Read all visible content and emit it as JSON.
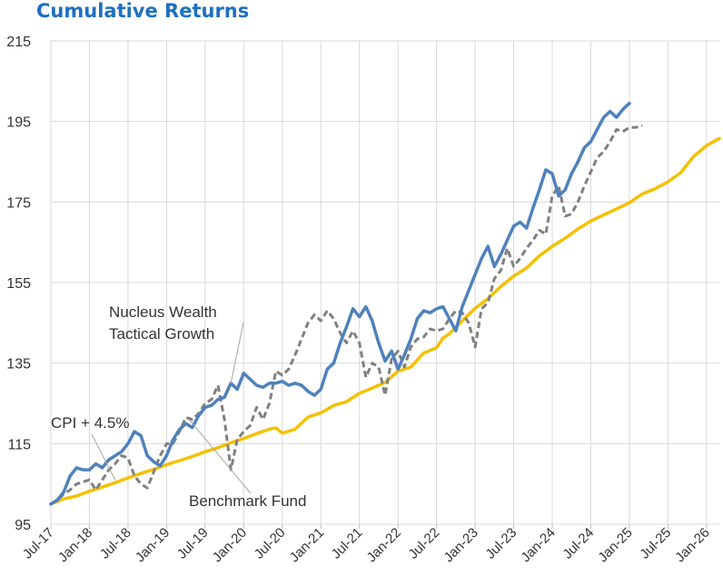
{
  "chart_data": {
    "type": "line",
    "title": "Cumulative Returns",
    "xlabel": "",
    "ylabel": "",
    "ylim": [
      95,
      215
    ],
    "yticks": [
      95,
      115,
      135,
      155,
      175,
      195,
      215
    ],
    "grid": true,
    "legend": "none",
    "colors": {
      "Nucleus Wealth Tactical Growth": "#4f81bd",
      "Benchmark Fund": "#808080",
      "CPI + 4.5%": "#f5c000",
      "grid": "#d9d9d9",
      "title": "#1f6fbf"
    },
    "x_range_months": [
      0,
      104
    ],
    "x_tick_labels": [
      {
        "label": "Jul-17",
        "m": 0
      },
      {
        "label": "Jan-18",
        "m": 6
      },
      {
        "label": "Jul-18",
        "m": 12
      },
      {
        "label": "Jan-19",
        "m": 18
      },
      {
        "label": "Jul-19",
        "m": 24
      },
      {
        "label": "Jan-20",
        "m": 30
      },
      {
        "label": "Jul-20",
        "m": 36
      },
      {
        "label": "Jan-21",
        "m": 42
      },
      {
        "label": "Jul-21",
        "m": 48
      },
      {
        "label": "Jan-22",
        "m": 54
      },
      {
        "label": "Jul-22",
        "m": 60
      },
      {
        "label": "Jan-23",
        "m": 66
      },
      {
        "label": "Jul-23",
        "m": 72
      },
      {
        "label": "Jan-24",
        "m": 78
      },
      {
        "label": "Jul-24",
        "m": 84
      },
      {
        "label": "Jan-25",
        "m": 90
      },
      {
        "label": "Jul-25",
        "m": 96
      },
      {
        "label": "Jan-26",
        "m": 102
      }
    ],
    "series": [
      {
        "name": "CPI + 4.5%",
        "style": "solid",
        "points": [
          [
            0,
            100
          ],
          [
            2,
            101.3
          ],
          [
            4,
            102
          ],
          [
            6,
            103.2
          ],
          [
            8,
            104.2
          ],
          [
            10,
            105.3
          ],
          [
            12,
            106.5
          ],
          [
            14,
            107.6
          ],
          [
            16,
            108.6
          ],
          [
            18,
            109.8
          ],
          [
            20,
            110.8
          ],
          [
            22,
            111.8
          ],
          [
            24,
            113
          ],
          [
            26,
            114
          ],
          [
            28,
            115.2
          ],
          [
            30,
            116.3
          ],
          [
            32,
            117.5
          ],
          [
            34,
            118.6
          ],
          [
            35,
            118.9
          ],
          [
            36,
            117.6
          ],
          [
            38,
            118.6
          ],
          [
            40,
            121.6
          ],
          [
            42,
            122.6
          ],
          [
            44,
            124.5
          ],
          [
            46,
            125.4
          ],
          [
            48,
            127.5
          ],
          [
            50,
            128.8
          ],
          [
            52,
            130.2
          ],
          [
            54,
            133
          ],
          [
            56,
            134
          ],
          [
            58,
            137.5
          ],
          [
            60,
            138.8
          ],
          [
            61,
            141.2
          ],
          [
            62,
            142.3
          ],
          [
            64,
            145.5
          ],
          [
            66,
            148.6
          ],
          [
            68,
            151
          ],
          [
            70,
            154
          ],
          [
            72,
            156.6
          ],
          [
            74,
            158.6
          ],
          [
            76,
            161.6
          ],
          [
            78,
            164
          ],
          [
            80,
            166
          ],
          [
            82,
            168.3
          ],
          [
            84,
            170.3
          ],
          [
            86,
            171.8
          ],
          [
            88,
            173.3
          ],
          [
            90,
            174.8
          ],
          [
            92,
            177
          ],
          [
            94,
            178.3
          ],
          [
            96,
            180
          ],
          [
            98,
            182.3
          ],
          [
            100,
            186.3
          ],
          [
            102,
            189
          ],
          [
            104,
            190.8
          ]
        ]
      },
      {
        "name": "Benchmark Fund",
        "style": "dashed",
        "points": [
          [
            0,
            100
          ],
          [
            1,
            101
          ],
          [
            2,
            102.5
          ],
          [
            3,
            103.5
          ],
          [
            4,
            105
          ],
          [
            5,
            105.5
          ],
          [
            6,
            106
          ],
          [
            7,
            103.5
          ],
          [
            8,
            106
          ],
          [
            9,
            108.5
          ],
          [
            10,
            110
          ],
          [
            11,
            112
          ],
          [
            12,
            111.5
          ],
          [
            13,
            107
          ],
          [
            14,
            105
          ],
          [
            15,
            104
          ],
          [
            16,
            108
          ],
          [
            17,
            112
          ],
          [
            18,
            115
          ],
          [
            19,
            115
          ],
          [
            20,
            118
          ],
          [
            21,
            121.5
          ],
          [
            22,
            121
          ],
          [
            23,
            122.5
          ],
          [
            24,
            125
          ],
          [
            25,
            126
          ],
          [
            26,
            129.5
          ],
          [
            27,
            121
          ],
          [
            28,
            108.5
          ],
          [
            29,
            116
          ],
          [
            30,
            118
          ],
          [
            31,
            119.5
          ],
          [
            32,
            124
          ],
          [
            33,
            121
          ],
          [
            34,
            125
          ],
          [
            35,
            133
          ],
          [
            36,
            132
          ],
          [
            37,
            133.5
          ],
          [
            38,
            137
          ],
          [
            39,
            141
          ],
          [
            40,
            145
          ],
          [
            41,
            147
          ],
          [
            42,
            145.5
          ],
          [
            43,
            148
          ],
          [
            44,
            146
          ],
          [
            45,
            142.5
          ],
          [
            46,
            140
          ],
          [
            47,
            143
          ],
          [
            48,
            140
          ],
          [
            49,
            131.5
          ],
          [
            50,
            135
          ],
          [
            51,
            134
          ],
          [
            52,
            127
          ],
          [
            53,
            136
          ],
          [
            54,
            138
          ],
          [
            55,
            134
          ],
          [
            56,
            139
          ],
          [
            57,
            141
          ],
          [
            58,
            141.5
          ],
          [
            59,
            143.5
          ],
          [
            60,
            143
          ],
          [
            61,
            143.5
          ],
          [
            62,
            146
          ],
          [
            63,
            148
          ],
          [
            64,
            147.5
          ],
          [
            65,
            145
          ],
          [
            66,
            139
          ],
          [
            67,
            148.5
          ],
          [
            68,
            150
          ],
          [
            69,
            156
          ],
          [
            70,
            158
          ],
          [
            71,
            163.5
          ],
          [
            72,
            159
          ],
          [
            73,
            161
          ],
          [
            74,
            163.5
          ],
          [
            75,
            165.5
          ],
          [
            76,
            168
          ],
          [
            77,
            167
          ],
          [
            78,
            176.5
          ],
          [
            79,
            179
          ],
          [
            80,
            171.5
          ],
          [
            81,
            172
          ],
          [
            82,
            175
          ],
          [
            83,
            179
          ],
          [
            84,
            182.5
          ],
          [
            85,
            186
          ],
          [
            86,
            187.5
          ],
          [
            87,
            190
          ],
          [
            88,
            193
          ],
          [
            89,
            192.5
          ],
          [
            90,
            193.5
          ],
          [
            91,
            193.5
          ],
          [
            92,
            194
          ]
        ]
      },
      {
        "name": "Nucleus Wealth Tactical Growth",
        "style": "solid",
        "points": [
          [
            0,
            100
          ],
          [
            1,
            101
          ],
          [
            2,
            103
          ],
          [
            3,
            107
          ],
          [
            4,
            109
          ],
          [
            5,
            108.5
          ],
          [
            6,
            108.5
          ],
          [
            7,
            110
          ],
          [
            8,
            109
          ],
          [
            9,
            111
          ],
          [
            10,
            112
          ],
          [
            11,
            113
          ],
          [
            12,
            115
          ],
          [
            13,
            118
          ],
          [
            14,
            117
          ],
          [
            15,
            112
          ],
          [
            16,
            110.5
          ],
          [
            17,
            109.5
          ],
          [
            18,
            112
          ],
          [
            19,
            116
          ],
          [
            20,
            118.5
          ],
          [
            21,
            120
          ],
          [
            22,
            119
          ],
          [
            23,
            122
          ],
          [
            24,
            124
          ],
          [
            25,
            124.5
          ],
          [
            26,
            126
          ],
          [
            27,
            126.5
          ],
          [
            28,
            130
          ],
          [
            29,
            128.5
          ],
          [
            30,
            132.5
          ],
          [
            31,
            131
          ],
          [
            32,
            129.5
          ],
          [
            33,
            129
          ],
          [
            34,
            130
          ],
          [
            35,
            130
          ],
          [
            36,
            130.5
          ],
          [
            37,
            129.5
          ],
          [
            38,
            130
          ],
          [
            39,
            129.5
          ],
          [
            40,
            128
          ],
          [
            41,
            127
          ],
          [
            42,
            128.5
          ],
          [
            43,
            133.5
          ],
          [
            44,
            135
          ],
          [
            45,
            140
          ],
          [
            46,
            144
          ],
          [
            47,
            148.5
          ],
          [
            48,
            146.5
          ],
          [
            49,
            149
          ],
          [
            50,
            145.5
          ],
          [
            51,
            140
          ],
          [
            52,
            135.5
          ],
          [
            53,
            138
          ],
          [
            54,
            133.5
          ],
          [
            55,
            137
          ],
          [
            56,
            141
          ],
          [
            57,
            146
          ],
          [
            58,
            148
          ],
          [
            59,
            147.5
          ],
          [
            60,
            148.5
          ],
          [
            61,
            149
          ],
          [
            62,
            146
          ],
          [
            63,
            143
          ],
          [
            64,
            149
          ],
          [
            65,
            153
          ],
          [
            66,
            157
          ],
          [
            67,
            161
          ],
          [
            68,
            164
          ],
          [
            69,
            159
          ],
          [
            70,
            162
          ],
          [
            71,
            165.5
          ],
          [
            72,
            169
          ],
          [
            73,
            170
          ],
          [
            74,
            168.5
          ],
          [
            75,
            173.5
          ],
          [
            76,
            178
          ],
          [
            77,
            183
          ],
          [
            78,
            182
          ],
          [
            79,
            176.5
          ],
          [
            80,
            178
          ],
          [
            81,
            182
          ],
          [
            82,
            185
          ],
          [
            83,
            188.5
          ],
          [
            84,
            190
          ],
          [
            85,
            193
          ],
          [
            86,
            196
          ],
          [
            87,
            197.5
          ],
          [
            88,
            196
          ],
          [
            89,
            198
          ],
          [
            90,
            199.5
          ]
        ]
      }
    ],
    "annotations": [
      {
        "lines": [
          "Nucleus Wealth",
          "Tactical Growth"
        ],
        "series": "Nucleus Wealth Tactical Growth"
      },
      {
        "lines": [
          "CPI + 4.5%"
        ],
        "series": "CPI + 4.5%"
      },
      {
        "lines": [
          "Benchmark Fund"
        ],
        "series": "Benchmark Fund"
      }
    ]
  }
}
